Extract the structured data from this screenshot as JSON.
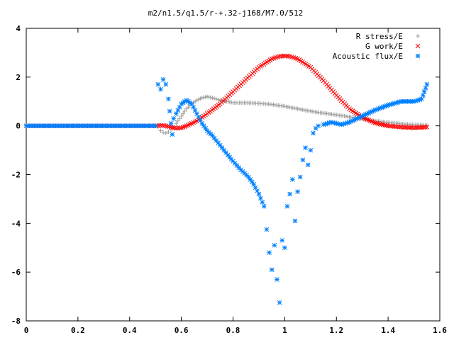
{
  "chart_data": {
    "type": "scatter",
    "title": "m2/n1.5/q1.5/r-+.32-j168/M7.0/512",
    "xlabel": "",
    "ylabel": "",
    "xlim": [
      0,
      1.6
    ],
    "ylim": [
      -8,
      4
    ],
    "xticks": [
      "0",
      "0.2",
      "0.4",
      "0.6",
      "0.8",
      "1",
      "1.2",
      "1.4",
      "1.6"
    ],
    "yticks": [
      "4",
      "2",
      "0",
      "-2",
      "-4",
      "-6",
      "-8"
    ],
    "grid": false,
    "legend_position": "top-right",
    "series": [
      {
        "name": "R stress/E",
        "color": "#a0a0a0",
        "marker": "plus",
        "x": [
          0.0,
          0.1,
          0.2,
          0.3,
          0.4,
          0.5,
          0.51,
          0.52,
          0.53,
          0.54,
          0.55,
          0.56,
          0.57,
          0.58,
          0.6,
          0.62,
          0.64,
          0.66,
          0.68,
          0.7,
          0.72,
          0.75,
          0.8,
          0.85,
          0.9,
          0.95,
          1.0,
          1.05,
          1.1,
          1.15,
          1.2,
          1.25,
          1.3,
          1.35,
          1.4,
          1.45,
          1.5,
          1.55
        ],
        "y": [
          0.0,
          0.0,
          0.0,
          0.0,
          0.0,
          0.0,
          -0.05,
          -0.2,
          -0.28,
          -0.3,
          -0.25,
          -0.15,
          -0.05,
          0.1,
          0.4,
          0.7,
          0.9,
          1.05,
          1.15,
          1.2,
          1.15,
          1.05,
          0.95,
          0.95,
          0.92,
          0.88,
          0.8,
          0.7,
          0.6,
          0.52,
          0.45,
          0.37,
          0.28,
          0.2,
          0.14,
          0.08,
          0.05,
          0.03
        ]
      },
      {
        "name": "G work/E",
        "color": "#ff0000",
        "marker": "cross",
        "x": [
          0.0,
          0.1,
          0.2,
          0.3,
          0.4,
          0.5,
          0.52,
          0.54,
          0.56,
          0.58,
          0.6,
          0.62,
          0.64,
          0.66,
          0.68,
          0.7,
          0.75,
          0.8,
          0.85,
          0.9,
          0.95,
          0.98,
          1.0,
          1.02,
          1.05,
          1.1,
          1.15,
          1.2,
          1.25,
          1.3,
          1.35,
          1.4,
          1.45,
          1.5,
          1.55
        ],
        "y": [
          0.0,
          0.0,
          0.0,
          0.0,
          0.0,
          0.0,
          0.02,
          0.0,
          -0.05,
          -0.1,
          -0.08,
          0.0,
          0.1,
          0.2,
          0.35,
          0.5,
          0.9,
          1.4,
          1.9,
          2.4,
          2.75,
          2.85,
          2.87,
          2.85,
          2.75,
          2.4,
          1.85,
          1.25,
          0.7,
          0.35,
          0.12,
          0.0,
          -0.05,
          -0.08,
          -0.05
        ]
      },
      {
        "name": "Acoustic flux/E",
        "color": "#0080ff",
        "marker": "star",
        "x": [
          0.0,
          0.1,
          0.2,
          0.3,
          0.4,
          0.5,
          0.51,
          0.52,
          0.53,
          0.54,
          0.55,
          0.555,
          0.56,
          0.565,
          0.57,
          0.58,
          0.6,
          0.62,
          0.64,
          0.66,
          0.68,
          0.7,
          0.72,
          0.75,
          0.78,
          0.8,
          0.83,
          0.86,
          0.88,
          0.9,
          0.92,
          0.93,
          0.94,
          0.95,
          0.96,
          0.97,
          0.98,
          0.99,
          1.0,
          1.01,
          1.02,
          1.03,
          1.04,
          1.05,
          1.06,
          1.07,
          1.08,
          1.09,
          1.1,
          1.11,
          1.12,
          1.13,
          1.15,
          1.18,
          1.2,
          1.22,
          1.25,
          1.3,
          1.35,
          1.4,
          1.45,
          1.5,
          1.53,
          1.55
        ],
        "y": [
          0.0,
          0.0,
          0.0,
          0.0,
          0.0,
          0.0,
          1.7,
          1.5,
          1.9,
          1.7,
          1.1,
          0.6,
          0.1,
          -0.35,
          0.3,
          0.5,
          0.9,
          1.05,
          0.9,
          0.5,
          0.1,
          -0.2,
          -0.4,
          -0.8,
          -1.2,
          -1.45,
          -1.8,
          -2.1,
          -2.4,
          -2.8,
          -3.3,
          -4.25,
          -5.2,
          -5.9,
          -4.9,
          -6.3,
          -7.25,
          -4.7,
          -5.0,
          -3.3,
          -2.8,
          -2.2,
          -3.9,
          -2.7,
          -2.1,
          -1.4,
          -0.9,
          -1.6,
          -1.0,
          -0.3,
          -0.1,
          0.0,
          0.05,
          0.15,
          0.1,
          0.05,
          0.15,
          0.4,
          0.65,
          0.85,
          1.0,
          1.0,
          1.1,
          1.7
        ]
      }
    ]
  }
}
